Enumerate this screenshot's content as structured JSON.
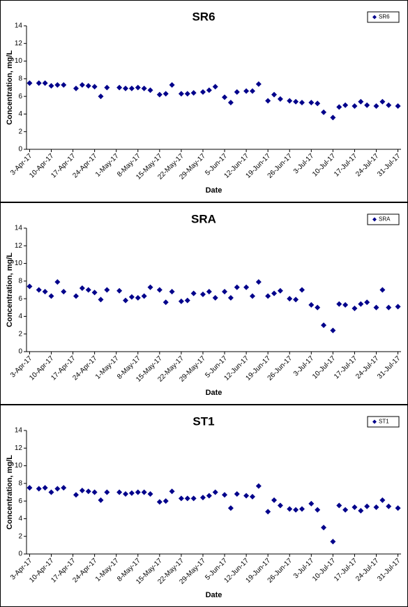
{
  "chart_data": [
    {
      "type": "scatter",
      "title": "SR6",
      "xlabel": "Date",
      "ylabel": "Concentration, mg/L",
      "legend": "upper right",
      "grid": false,
      "xlim": [
        "2017-04-02",
        "2017-08-01"
      ],
      "ylim": [
        0,
        14
      ],
      "yticks": [
        0,
        2,
        4,
        6,
        8,
        10,
        12,
        14
      ],
      "xticks": [
        {
          "value": "2017-04-03",
          "label": "3-Apr-17"
        },
        {
          "value": "2017-04-10",
          "label": "10-Apr-17"
        },
        {
          "value": "2017-04-17",
          "label": "17-Apr-17"
        },
        {
          "value": "2017-04-24",
          "label": "24-Apr-17"
        },
        {
          "value": "2017-05-01",
          "label": "1-May-17"
        },
        {
          "value": "2017-05-08",
          "label": "8-May-17"
        },
        {
          "value": "2017-05-15",
          "label": "15-May-17"
        },
        {
          "value": "2017-05-22",
          "label": "22-May-17"
        },
        {
          "value": "2017-05-29",
          "label": "29-May-17"
        },
        {
          "value": "2017-06-05",
          "label": "5-Jun-17"
        },
        {
          "value": "2017-06-12",
          "label": "12-Jun-17"
        },
        {
          "value": "2017-06-19",
          "label": "19-Jun-17"
        },
        {
          "value": "2017-06-26",
          "label": "26-Jun-17"
        },
        {
          "value": "2017-07-03",
          "label": "3-Jul-17"
        },
        {
          "value": "2017-07-10",
          "label": "10-Jul-17"
        },
        {
          "value": "2017-07-17",
          "label": "17-Jul-17"
        },
        {
          "value": "2017-07-24",
          "label": "24-Jul-17"
        },
        {
          "value": "2017-07-31",
          "label": "31-Jul-17"
        }
      ],
      "x": [
        "2017-04-03",
        "2017-04-06",
        "2017-04-08",
        "2017-04-10",
        "2017-04-12",
        "2017-04-14",
        "2017-04-18",
        "2017-04-20",
        "2017-04-22",
        "2017-04-24",
        "2017-04-26",
        "2017-04-28",
        "2017-05-02",
        "2017-05-04",
        "2017-05-06",
        "2017-05-08",
        "2017-05-10",
        "2017-05-12",
        "2017-05-15",
        "2017-05-17",
        "2017-05-19",
        "2017-05-22",
        "2017-05-24",
        "2017-05-26",
        "2017-05-29",
        "2017-05-31",
        "2017-06-02",
        "2017-06-05",
        "2017-06-07",
        "2017-06-09",
        "2017-06-12",
        "2017-06-14",
        "2017-06-16",
        "2017-06-19",
        "2017-06-21",
        "2017-06-23",
        "2017-06-26",
        "2017-06-28",
        "2017-06-30",
        "2017-07-03",
        "2017-07-05",
        "2017-07-07",
        "2017-07-10",
        "2017-07-12",
        "2017-07-14",
        "2017-07-17",
        "2017-07-19",
        "2017-07-21",
        "2017-07-24",
        "2017-07-26",
        "2017-07-28",
        "2017-07-31"
      ],
      "series": [
        {
          "name": "SR6",
          "color": "#00008b",
          "values": [
            7.5,
            7.5,
            7.5,
            7.2,
            7.3,
            7.3,
            6.9,
            7.3,
            7.2,
            7.1,
            6.0,
            7.0,
            7.0,
            6.9,
            6.9,
            7.0,
            6.9,
            6.7,
            6.2,
            6.3,
            7.3,
            6.3,
            6.3,
            6.4,
            6.5,
            6.7,
            7.1,
            5.9,
            5.3,
            6.5,
            6.6,
            6.6,
            7.4,
            5.5,
            6.2,
            5.7,
            5.5,
            5.4,
            5.3,
            5.3,
            5.2,
            4.2,
            3.6,
            4.8,
            5.0,
            4.9,
            5.4,
            5.0,
            4.9,
            5.4,
            5.0,
            4.9
          ]
        }
      ]
    },
    {
      "type": "scatter",
      "title": "SRA",
      "xlabel": "Date",
      "ylabel": "Concentration, mg/L",
      "legend": "upper right",
      "grid": false,
      "xlim": [
        "2017-04-02",
        "2017-08-01"
      ],
      "ylim": [
        0,
        14
      ],
      "yticks": [
        0,
        2,
        4,
        6,
        8,
        10,
        12,
        14
      ],
      "xticks": [
        {
          "value": "2017-04-03",
          "label": "3-Apr-17"
        },
        {
          "value": "2017-04-10",
          "label": "10-Apr-17"
        },
        {
          "value": "2017-04-17",
          "label": "17-Apr-17"
        },
        {
          "value": "2017-04-24",
          "label": "24-Apr-17"
        },
        {
          "value": "2017-05-01",
          "label": "1-May-17"
        },
        {
          "value": "2017-05-08",
          "label": "8-May-17"
        },
        {
          "value": "2017-05-15",
          "label": "15-May-17"
        },
        {
          "value": "2017-05-22",
          "label": "22-May-17"
        },
        {
          "value": "2017-05-29",
          "label": "29-May-17"
        },
        {
          "value": "2017-06-05",
          "label": "5-Jun-17"
        },
        {
          "value": "2017-06-12",
          "label": "12-Jun-17"
        },
        {
          "value": "2017-06-19",
          "label": "19-Jun-17"
        },
        {
          "value": "2017-06-26",
          "label": "26-Jun-17"
        },
        {
          "value": "2017-07-03",
          "label": "3-Jul-17"
        },
        {
          "value": "2017-07-10",
          "label": "10-Jul-17"
        },
        {
          "value": "2017-07-17",
          "label": "17-Jul-17"
        },
        {
          "value": "2017-07-24",
          "label": "24-Jul-17"
        },
        {
          "value": "2017-07-31",
          "label": "31-Jul-17"
        }
      ],
      "x": [
        "2017-04-03",
        "2017-04-06",
        "2017-04-08",
        "2017-04-10",
        "2017-04-12",
        "2017-04-14",
        "2017-04-18",
        "2017-04-20",
        "2017-04-22",
        "2017-04-24",
        "2017-04-26",
        "2017-04-28",
        "2017-05-02",
        "2017-05-04",
        "2017-05-06",
        "2017-05-08",
        "2017-05-10",
        "2017-05-12",
        "2017-05-15",
        "2017-05-17",
        "2017-05-19",
        "2017-05-22",
        "2017-05-24",
        "2017-05-26",
        "2017-05-29",
        "2017-05-31",
        "2017-06-02",
        "2017-06-05",
        "2017-06-07",
        "2017-06-09",
        "2017-06-12",
        "2017-06-14",
        "2017-06-16",
        "2017-06-19",
        "2017-06-21",
        "2017-06-23",
        "2017-06-26",
        "2017-06-28",
        "2017-06-30",
        "2017-07-03",
        "2017-07-05",
        "2017-07-07",
        "2017-07-10",
        "2017-07-12",
        "2017-07-14",
        "2017-07-17",
        "2017-07-19",
        "2017-07-21",
        "2017-07-24",
        "2017-07-26",
        "2017-07-28",
        "2017-07-31"
      ],
      "series": [
        {
          "name": "SRA",
          "color": "#00008b",
          "values": [
            7.4,
            7.0,
            6.8,
            6.3,
            7.9,
            6.8,
            6.3,
            7.2,
            7.0,
            6.7,
            5.9,
            7.0,
            6.9,
            5.8,
            6.2,
            6.1,
            6.3,
            7.3,
            7.0,
            5.6,
            6.8,
            5.7,
            5.8,
            6.6,
            6.5,
            6.8,
            6.1,
            6.8,
            6.1,
            7.3,
            7.3,
            6.3,
            7.9,
            6.3,
            6.6,
            6.9,
            6.0,
            5.9,
            7.0,
            5.3,
            5.0,
            3.0,
            2.4,
            5.4,
            5.3,
            4.9,
            5.4,
            5.6,
            5.0,
            7.0,
            5.0,
            5.1
          ]
        }
      ]
    },
    {
      "type": "scatter",
      "title": "ST1",
      "xlabel": "Date",
      "ylabel": "Concentration, mg/L",
      "legend": "upper right",
      "grid": false,
      "xlim": [
        "2017-04-02",
        "2017-08-01"
      ],
      "ylim": [
        0,
        14
      ],
      "yticks": [
        0,
        2,
        4,
        6,
        8,
        10,
        12,
        14
      ],
      "xticks": [
        {
          "value": "2017-04-03",
          "label": "3-Apr-17"
        },
        {
          "value": "2017-04-10",
          "label": "10-Apr-17"
        },
        {
          "value": "2017-04-17",
          "label": "17-Apr-17"
        },
        {
          "value": "2017-04-24",
          "label": "24-Apr-17"
        },
        {
          "value": "2017-05-01",
          "label": "1-May-17"
        },
        {
          "value": "2017-05-08",
          "label": "8-May-17"
        },
        {
          "value": "2017-05-15",
          "label": "15-May-17"
        },
        {
          "value": "2017-05-22",
          "label": "22-May-17"
        },
        {
          "value": "2017-05-29",
          "label": "29-May-17"
        },
        {
          "value": "2017-06-05",
          "label": "5-Jun-17"
        },
        {
          "value": "2017-06-12",
          "label": "12-Jun-17"
        },
        {
          "value": "2017-06-19",
          "label": "19-Jun-17"
        },
        {
          "value": "2017-06-26",
          "label": "26-Jun-17"
        },
        {
          "value": "2017-07-03",
          "label": "3-Jul-17"
        },
        {
          "value": "2017-07-10",
          "label": "10-Jul-17"
        },
        {
          "value": "2017-07-17",
          "label": "17-Jul-17"
        },
        {
          "value": "2017-07-24",
          "label": "24-Jul-17"
        },
        {
          "value": "2017-07-31",
          "label": "31-Jul-17"
        }
      ],
      "x": [
        "2017-04-03",
        "2017-04-06",
        "2017-04-08",
        "2017-04-10",
        "2017-04-12",
        "2017-04-14",
        "2017-04-18",
        "2017-04-20",
        "2017-04-22",
        "2017-04-24",
        "2017-04-26",
        "2017-04-28",
        "2017-05-02",
        "2017-05-04",
        "2017-05-06",
        "2017-05-08",
        "2017-05-10",
        "2017-05-12",
        "2017-05-15",
        "2017-05-17",
        "2017-05-19",
        "2017-05-22",
        "2017-05-24",
        "2017-05-26",
        "2017-05-29",
        "2017-05-31",
        "2017-06-02",
        "2017-06-05",
        "2017-06-07",
        "2017-06-09",
        "2017-06-12",
        "2017-06-14",
        "2017-06-16",
        "2017-06-19",
        "2017-06-21",
        "2017-06-23",
        "2017-06-26",
        "2017-06-28",
        "2017-06-30",
        "2017-07-03",
        "2017-07-05",
        "2017-07-07",
        "2017-07-10",
        "2017-07-12",
        "2017-07-14",
        "2017-07-17",
        "2017-07-19",
        "2017-07-21",
        "2017-07-24",
        "2017-07-26",
        "2017-07-28",
        "2017-07-31"
      ],
      "series": [
        {
          "name": "ST1",
          "color": "#00008b",
          "values": [
            7.5,
            7.4,
            7.5,
            7.0,
            7.4,
            7.5,
            6.7,
            7.2,
            7.1,
            7.0,
            6.1,
            7.0,
            7.0,
            6.8,
            6.9,
            7.0,
            7.0,
            6.8,
            5.9,
            6.0,
            7.1,
            6.3,
            6.3,
            6.3,
            6.4,
            6.6,
            7.0,
            6.7,
            5.2,
            6.8,
            6.6,
            6.5,
            7.7,
            4.8,
            6.1,
            5.5,
            5.1,
            5.0,
            5.1,
            5.7,
            5.0,
            3.0,
            1.4,
            5.5,
            5.0,
            5.3,
            4.9,
            5.4,
            5.3,
            6.1,
            5.4,
            5.2
          ]
        }
      ]
    }
  ]
}
